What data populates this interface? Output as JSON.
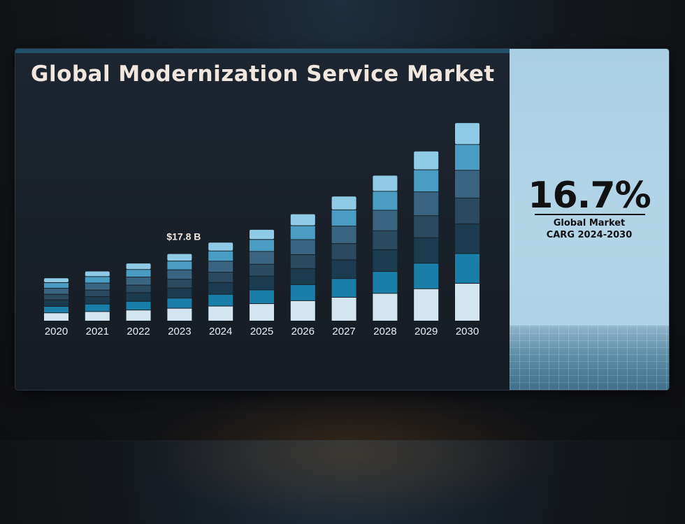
{
  "title": "Global Modernization Service Market",
  "stat": {
    "value": "16.7%",
    "label_line1": "Global Market",
    "label_line2": "CARG 2024-2030"
  },
  "colors": {
    "panel_bg": "#1a222b",
    "accent_strip": "#23506a",
    "side_bg": "#b0d4e6",
    "title_text": "#f1e7df",
    "segments": [
      "#d3e6f0",
      "#1a7fa8",
      "#1b3b4e",
      "#2a4a60",
      "#3a6582",
      "#4b9cc2",
      "#8fcbe6"
    ]
  },
  "chart_data": {
    "type": "bar",
    "stacked": true,
    "title": "Global Modernization Service Market",
    "categories": [
      "2020",
      "2021",
      "2022",
      "2023",
      "2024",
      "2025",
      "2026",
      "2027",
      "2028",
      "2029",
      "2030"
    ],
    "totals": [
      11.4,
      13.2,
      15.3,
      17.8,
      20.8,
      24.2,
      28.3,
      33.0,
      38.5,
      44.9,
      52.4
    ],
    "annotations": [
      {
        "category": "2023",
        "text": "$17.8 B"
      }
    ],
    "segment_shares": [
      0.19,
      0.15,
      0.15,
      0.13,
      0.14,
      0.13,
      0.11
    ],
    "ylim": [
      0,
      55
    ],
    "grid": false,
    "legend": "none"
  }
}
